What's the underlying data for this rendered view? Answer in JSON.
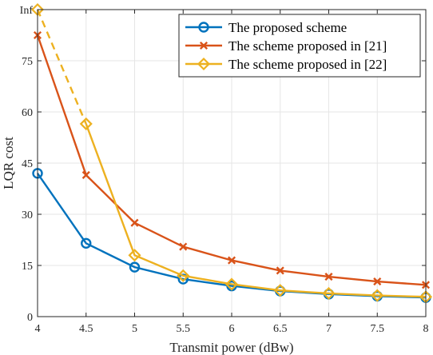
{
  "chart_data": {
    "type": "line",
    "xlabel": "Transmit power (dBw)",
    "ylabel": "LQR cost",
    "xlim": [
      4,
      8
    ],
    "ylim": [
      0,
      90
    ],
    "x_ticks": [
      "4",
      "4.5",
      "5",
      "5.5",
      "6",
      "6.5",
      "7",
      "7.5",
      "8"
    ],
    "y_ticks": [
      {
        "value": 0,
        "label": "0"
      },
      {
        "value": 15,
        "label": "15"
      },
      {
        "value": 30,
        "label": "30"
      },
      {
        "value": 45,
        "label": "45"
      },
      {
        "value": 60,
        "label": "60"
      },
      {
        "value": 75,
        "label": "75"
      },
      {
        "value": 90,
        "label": "Inf"
      }
    ],
    "grid": true,
    "legend_position": "top-right",
    "x": [
      4,
      4.5,
      5,
      5.5,
      6,
      6.5,
      7,
      7.5,
      8
    ],
    "series": [
      {
        "name": "The proposed scheme",
        "color": "#0072BD",
        "marker": "circle",
        "values": [
          42,
          21.5,
          14.5,
          11,
          9,
          7.5,
          6.6,
          6,
          5.6
        ]
      },
      {
        "name": "The scheme proposed in [21]",
        "color": "#D95319",
        "marker": "x",
        "values": [
          82.5,
          41.5,
          27.5,
          20.5,
          16.5,
          13.5,
          11.7,
          10.3,
          9.3
        ]
      },
      {
        "name": "The scheme proposed in [22]",
        "color": "#EDB120",
        "marker": "diamond",
        "values": [
          90,
          56.5,
          18,
          12,
          9.5,
          7.7,
          6.8,
          6.2,
          5.8
        ],
        "dashed_segment_to_x": 4.5
      }
    ]
  }
}
